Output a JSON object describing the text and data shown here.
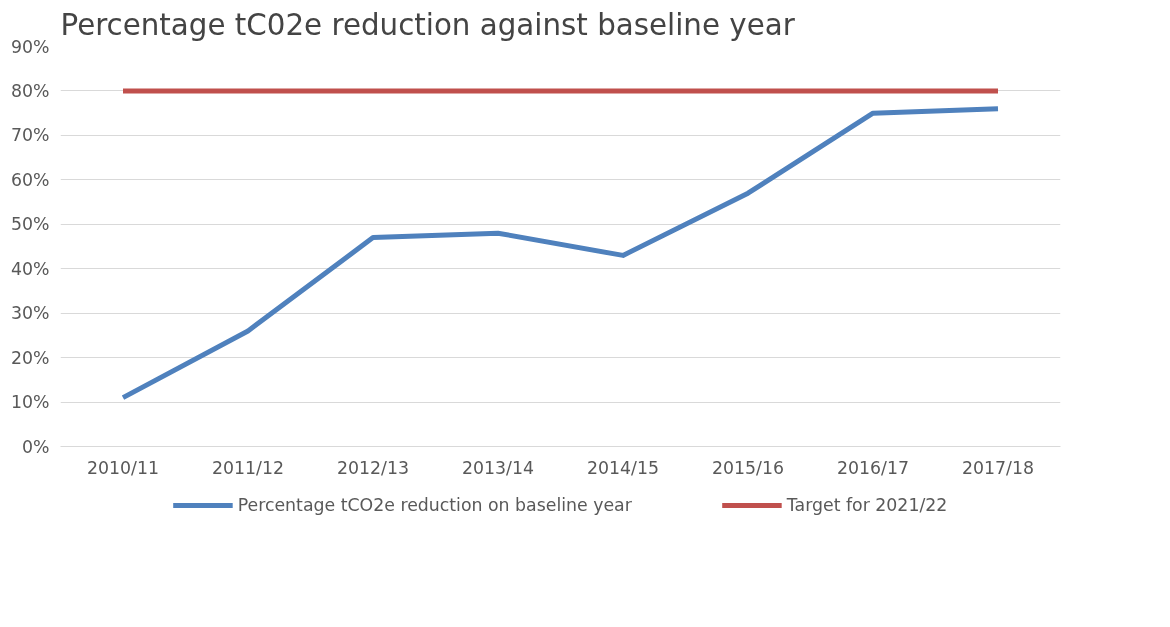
{
  "chart_data": {
    "type": "line",
    "title": "Percentage tC02e reduction against baseline year",
    "categories": [
      "2010/11",
      "2011/12",
      "2012/13",
      "2013/14",
      "2014/15",
      "2015/16",
      "2016/17",
      "2017/18"
    ],
    "series": [
      {
        "name": "Percentage tCO2e reduction on baseline year",
        "color": "#4f81bd",
        "values": [
          11,
          26,
          47,
          48,
          43,
          57,
          75,
          76
        ]
      },
      {
        "name": "Target for 2021/22",
        "color": "#c0504d",
        "values": [
          80,
          80,
          80,
          80,
          80,
          80,
          80,
          80
        ]
      }
    ],
    "ylim": [
      0,
      90
    ],
    "yticks": [
      {
        "value": 0,
        "label": "0%"
      },
      {
        "value": 10,
        "label": "10%"
      },
      {
        "value": 20,
        "label": "20%"
      },
      {
        "value": 30,
        "label": "30%"
      },
      {
        "value": 40,
        "label": "40%"
      },
      {
        "value": 50,
        "label": "50%"
      },
      {
        "value": 60,
        "label": "60%"
      },
      {
        "value": 70,
        "label": "70%"
      },
      {
        "value": 80,
        "label": "80%"
      },
      {
        "value": 90,
        "label": "90%"
      }
    ],
    "grid": "y",
    "legend": "bottom",
    "marker": "none",
    "line_style": "solid"
  }
}
